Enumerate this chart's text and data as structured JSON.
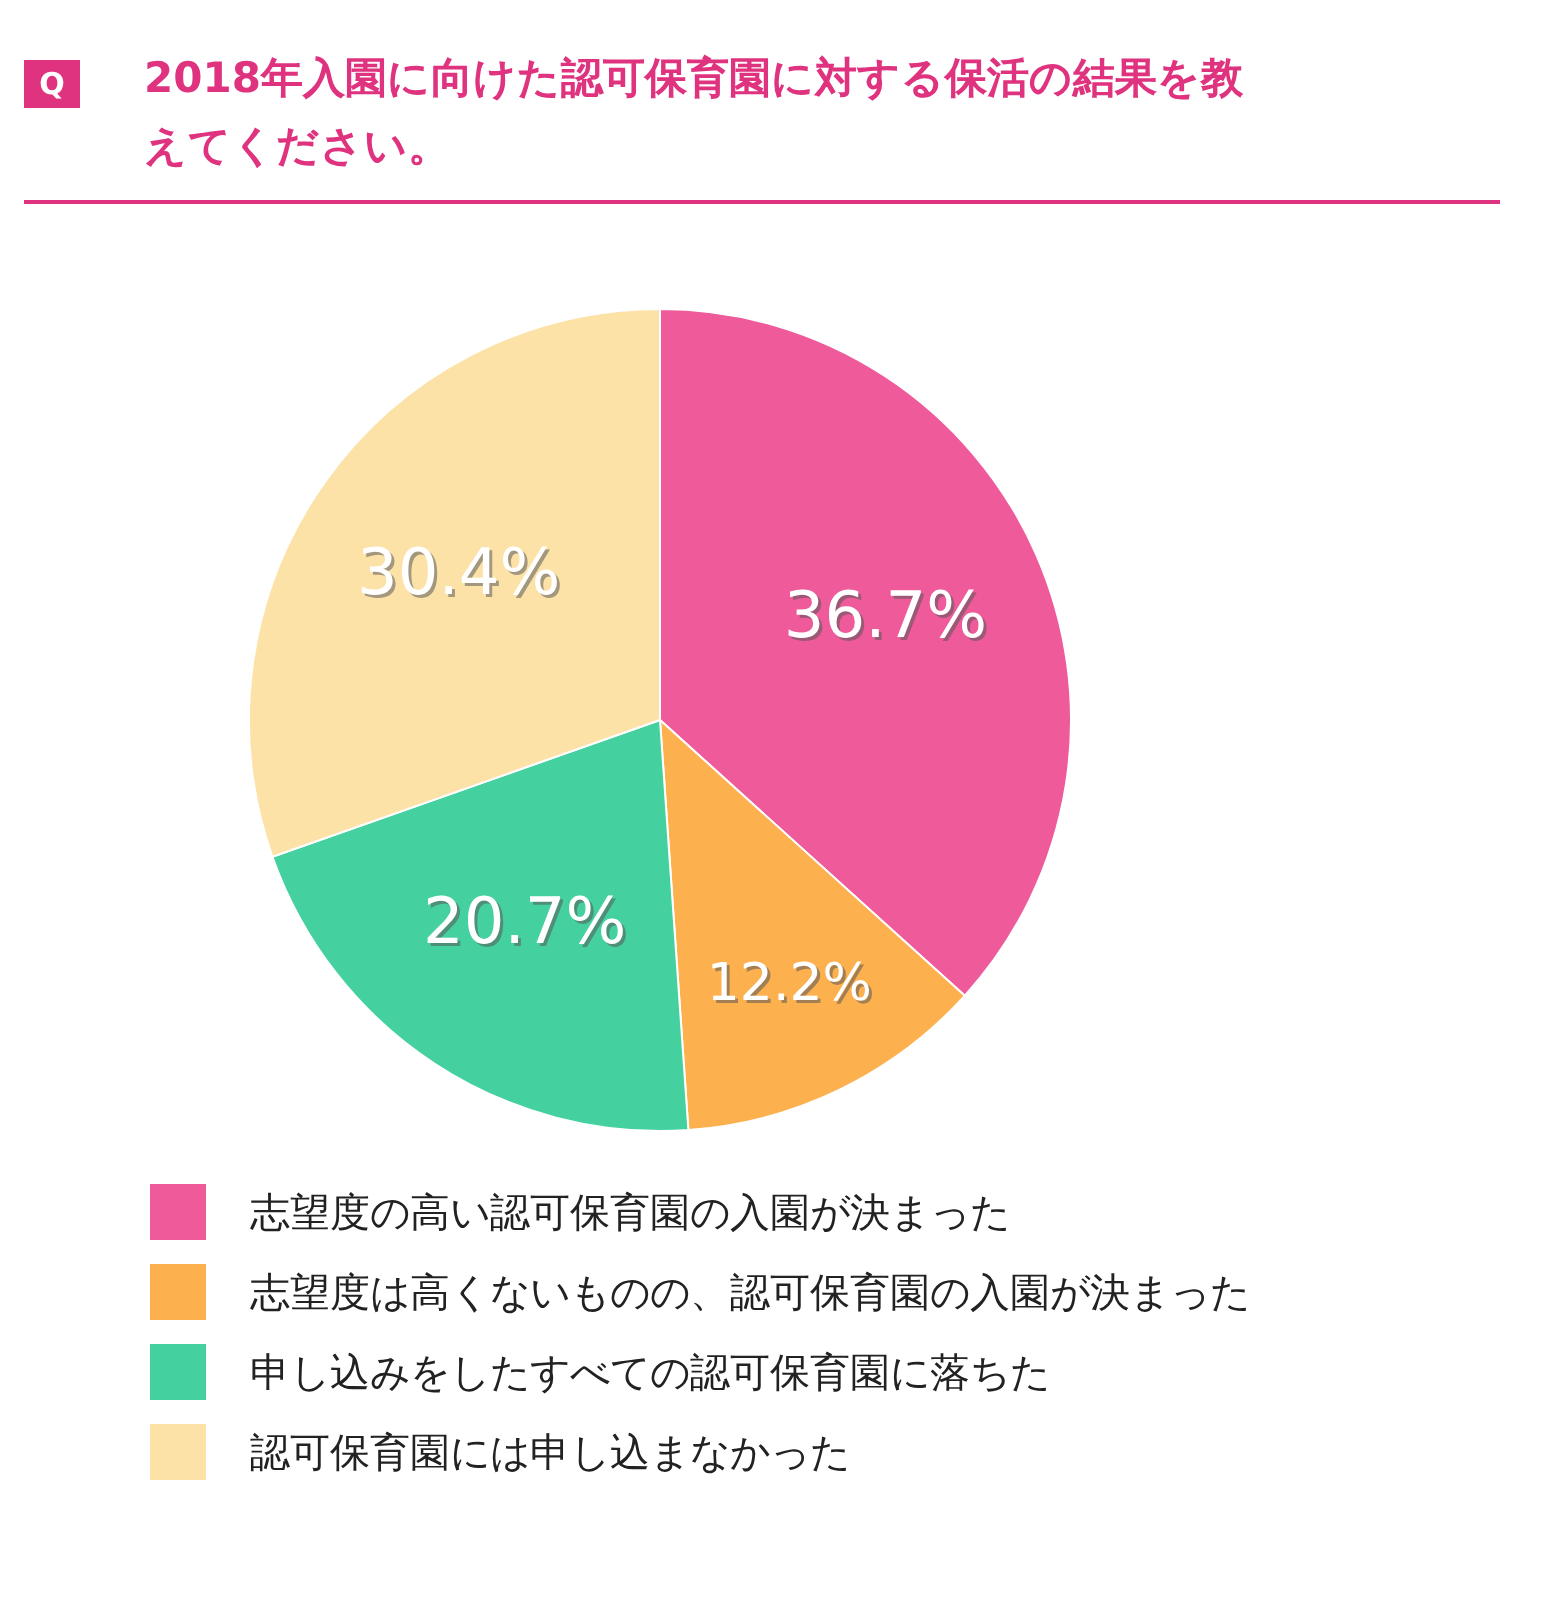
{
  "chart_data": {
    "type": "pie",
    "title": "2018年入園に向けた認可保育園に対する保活の結果を教えてください。",
    "categories": [
      "志望度の高い認可保育園の入園が決まった",
      "志望度は高くないものの、認可保育園の入園が決まった",
      "申し込みをしたすべての認可保育園に落ちた",
      "認可保育園には申し込まなかった"
    ],
    "values": [
      36.7,
      12.2,
      20.7,
      30.4
    ],
    "colors": [
      "#ee5a9a",
      "#fdb04e",
      "#44d19f",
      "#fde2a8"
    ],
    "value_labels": [
      "36.7%",
      "12.2%",
      "20.7%",
      "30.4%"
    ],
    "annotations": [
      "Q"
    ],
    "legend": "bottom"
  }
}
